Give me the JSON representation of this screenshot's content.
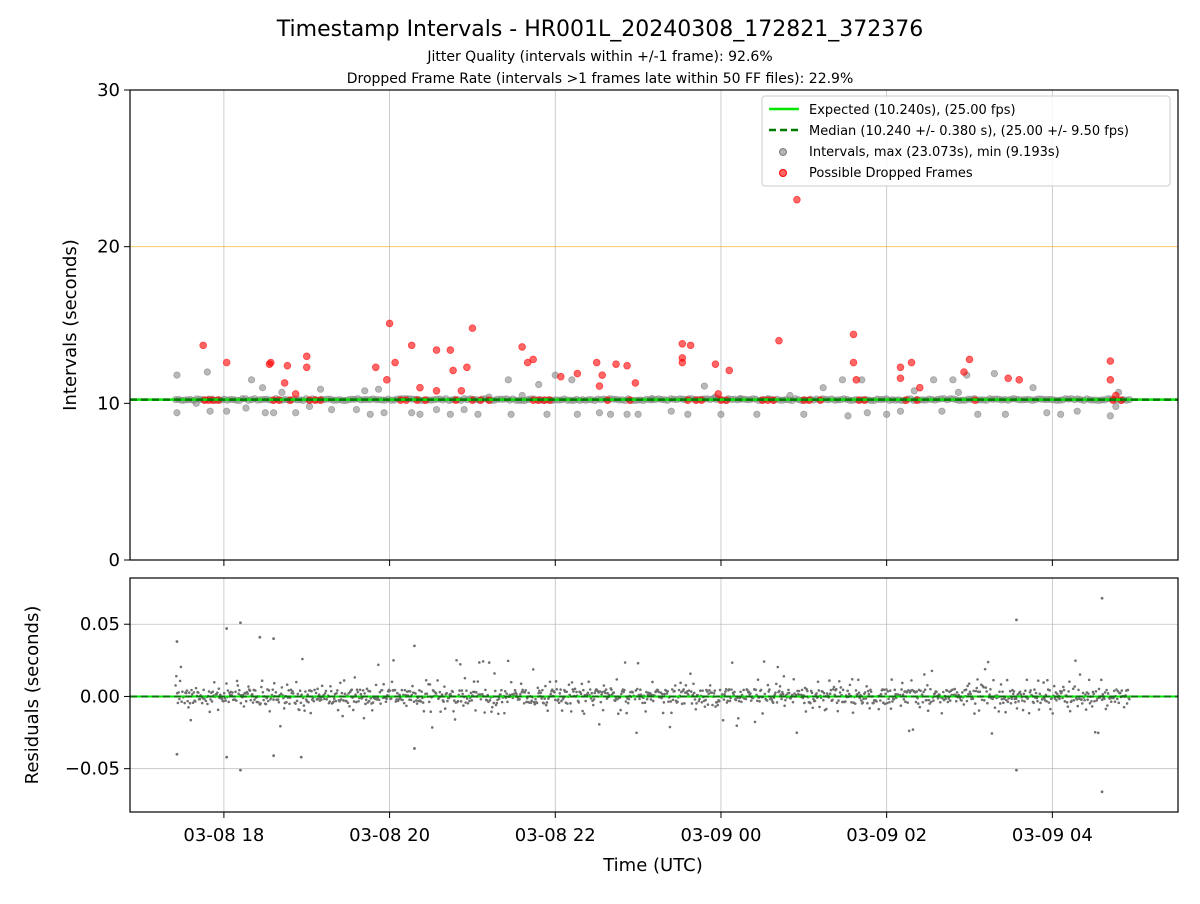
{
  "chart_data": [
    {
      "type": "scatter",
      "title": "Timestamp Intervals - HR001L_20240308_172821_372376",
      "subtitle_1": "Jitter Quality (intervals within +/-1 frame): 92.6%",
      "subtitle_2": "Dropped Frame Rate (intervals >1 frames late within 50 FF files): 22.9%",
      "ylabel": "Intervals (seconds)",
      "ylim": [
        0,
        30
      ],
      "yticks": [
        "0",
        "10",
        "20",
        "30"
      ],
      "xlim": [
        "2024-03-08 16:52",
        "2024-03-09 05:31"
      ],
      "xticks": [
        {
          "value": "2024-03-08 18:00",
          "label": "03-08 18"
        },
        {
          "value": "2024-03-08 20:00",
          "label": "03-08 20"
        },
        {
          "value": "2024-03-08 22:00",
          "label": "03-08 22"
        },
        {
          "value": "2024-03-09 00:00",
          "label": "03-09 00"
        },
        {
          "value": "2024-03-09 02:00",
          "label": "03-09 02"
        },
        {
          "value": "2024-03-09 04:00",
          "label": "03-09 04"
        }
      ],
      "grid": "vertical",
      "reference_line_y": 20,
      "legend_position": "top-right",
      "series": [
        {
          "name": "Expected (10.240s), (25.00 fps)",
          "kind": "hline",
          "y": 10.24,
          "color": "#00e600"
        },
        {
          "name": "Median (10.240 +/- 0.380 s), (25.00 +/- 9.50 fps)",
          "kind": "hline-dashed",
          "y": 10.24,
          "color": "#007a00"
        },
        {
          "name": "Intervals, max (23.073s), min (9.193s)",
          "kind": "points",
          "color": "#808080",
          "points": [
            [
              "2024-03-08 17:26",
              11.8
            ],
            [
              "2024-03-08 17:26",
              9.4
            ],
            [
              "2024-03-08 17:40",
              10.0
            ],
            [
              "2024-03-08 17:48",
              12.0
            ],
            [
              "2024-03-08 17:50",
              9.5
            ],
            [
              "2024-03-08 18:02",
              9.5
            ],
            [
              "2024-03-08 18:16",
              9.7
            ],
            [
              "2024-03-08 18:20",
              11.5
            ],
            [
              "2024-03-08 18:28",
              11.0
            ],
            [
              "2024-03-08 18:30",
              9.4
            ],
            [
              "2024-03-08 18:36",
              9.4
            ],
            [
              "2024-03-08 18:42",
              10.7
            ],
            [
              "2024-03-08 18:52",
              9.4
            ],
            [
              "2024-03-08 19:02",
              9.8
            ],
            [
              "2024-03-08 19:10",
              10.9
            ],
            [
              "2024-03-08 19:18",
              9.6
            ],
            [
              "2024-03-08 19:36",
              9.6
            ],
            [
              "2024-03-08 19:42",
              10.8
            ],
            [
              "2024-03-08 19:46",
              9.3
            ],
            [
              "2024-03-08 19:52",
              10.9
            ],
            [
              "2024-03-08 19:56",
              9.4
            ],
            [
              "2024-03-08 20:16",
              9.4
            ],
            [
              "2024-03-08 20:22",
              9.3
            ],
            [
              "2024-03-08 20:34",
              9.6
            ],
            [
              "2024-03-08 20:44",
              9.3
            ],
            [
              "2024-03-08 20:54",
              9.6
            ],
            [
              "2024-03-08 21:04",
              9.3
            ],
            [
              "2024-03-08 21:12",
              10.4
            ],
            [
              "2024-03-08 21:26",
              11.5
            ],
            [
              "2024-03-08 21:28",
              9.3
            ],
            [
              "2024-03-08 21:36",
              10.5
            ],
            [
              "2024-03-08 21:48",
              11.2
            ],
            [
              "2024-03-08 21:54",
              9.3
            ],
            [
              "2024-03-08 22:00",
              11.8
            ],
            [
              "2024-03-08 22:12",
              11.5
            ],
            [
              "2024-03-08 22:16",
              9.3
            ],
            [
              "2024-03-08 22:32",
              9.4
            ],
            [
              "2024-03-08 22:40",
              9.3
            ],
            [
              "2024-03-08 22:52",
              9.3
            ],
            [
              "2024-03-08 23:00",
              9.3
            ],
            [
              "2024-03-08 23:10",
              10.3
            ],
            [
              "2024-03-08 23:24",
              9.5
            ],
            [
              "2024-03-08 23:36",
              9.3
            ],
            [
              "2024-03-08 23:48",
              11.1
            ],
            [
              "2024-03-08 23:56",
              10.4
            ],
            [
              "2024-03-09 00:00",
              9.3
            ],
            [
              "2024-03-09 00:14",
              10.3
            ],
            [
              "2024-03-09 00:26",
              9.3
            ],
            [
              "2024-03-09 00:50",
              10.5
            ],
            [
              "2024-03-09 01:00",
              9.3
            ],
            [
              "2024-03-09 01:14",
              11.0
            ],
            [
              "2024-03-09 01:28",
              11.5
            ],
            [
              "2024-03-09 01:32",
              9.2
            ],
            [
              "2024-03-09 01:42",
              11.5
            ],
            [
              "2024-03-09 01:46",
              9.4
            ],
            [
              "2024-03-09 02:00",
              9.3
            ],
            [
              "2024-03-09 02:10",
              9.5
            ],
            [
              "2024-03-09 02:20",
              10.8
            ],
            [
              "2024-03-09 02:34",
              11.5
            ],
            [
              "2024-03-09 02:40",
              9.5
            ],
            [
              "2024-03-09 02:48",
              11.5
            ],
            [
              "2024-03-09 02:52",
              10.7
            ],
            [
              "2024-03-09 02:58",
              11.8
            ],
            [
              "2024-03-09 03:06",
              9.3
            ],
            [
              "2024-03-09 03:18",
              11.9
            ],
            [
              "2024-03-09 03:26",
              9.3
            ],
            [
              "2024-03-09 03:46",
              11.0
            ],
            [
              "2024-03-09 03:56",
              9.4
            ],
            [
              "2024-03-09 04:06",
              9.3
            ],
            [
              "2024-03-09 04:18",
              9.5
            ],
            [
              "2024-03-09 04:42",
              9.2
            ],
            [
              "2024-03-09 04:46",
              9.8
            ],
            [
              "2024-03-09 04:48",
              10.7
            ]
          ]
        },
        {
          "name": "Possible Dropped Frames",
          "kind": "points",
          "color": "#ff0000",
          "points": [
            [
              "2024-03-08 17:45",
              13.7
            ],
            [
              "2024-03-08 17:46",
              10.2
            ],
            [
              "2024-03-08 17:49",
              10.2
            ],
            [
              "2024-03-08 17:52",
              10.2
            ],
            [
              "2024-03-08 17:56",
              10.2
            ],
            [
              "2024-03-08 18:02",
              12.6
            ],
            [
              "2024-03-08 18:33",
              12.5
            ],
            [
              "2024-03-08 18:34",
              12.6
            ],
            [
              "2024-03-08 18:36",
              10.2
            ],
            [
              "2024-03-08 18:40",
              10.2
            ],
            [
              "2024-03-08 18:44",
              11.3
            ],
            [
              "2024-03-08 18:46",
              12.4
            ],
            [
              "2024-03-08 18:48",
              10.2
            ],
            [
              "2024-03-08 18:52",
              10.6
            ],
            [
              "2024-03-08 19:00",
              13.0
            ],
            [
              "2024-03-08 19:00",
              12.3
            ],
            [
              "2024-03-08 19:02",
              10.2
            ],
            [
              "2024-03-08 19:06",
              10.2
            ],
            [
              "2024-03-08 19:10",
              10.2
            ],
            [
              "2024-03-08 19:50",
              12.3
            ],
            [
              "2024-03-08 19:58",
              11.5
            ],
            [
              "2024-03-08 20:00",
              15.1
            ],
            [
              "2024-03-08 20:04",
              12.6
            ],
            [
              "2024-03-08 20:08",
              10.2
            ],
            [
              "2024-03-08 20:12",
              10.2
            ],
            [
              "2024-03-08 20:16",
              13.7
            ],
            [
              "2024-03-08 20:20",
              10.2
            ],
            [
              "2024-03-08 20:22",
              11.0
            ],
            [
              "2024-03-08 20:26",
              10.2
            ],
            [
              "2024-03-08 20:34",
              13.4
            ],
            [
              "2024-03-08 20:34",
              10.8
            ],
            [
              "2024-03-08 20:44",
              13.4
            ],
            [
              "2024-03-08 20:46",
              12.1
            ],
            [
              "2024-03-08 20:48",
              10.2
            ],
            [
              "2024-03-08 20:52",
              10.8
            ],
            [
              "2024-03-08 20:56",
              12.3
            ],
            [
              "2024-03-08 21:00",
              14.8
            ],
            [
              "2024-03-08 21:00",
              10.2
            ],
            [
              "2024-03-08 21:06",
              10.2
            ],
            [
              "2024-03-08 21:12",
              10.2
            ],
            [
              "2024-03-08 21:36",
              13.6
            ],
            [
              "2024-03-08 21:40",
              12.6
            ],
            [
              "2024-03-08 21:44",
              12.8
            ],
            [
              "2024-03-08 21:44",
              10.2
            ],
            [
              "2024-03-08 21:48",
              10.2
            ],
            [
              "2024-03-08 21:52",
              10.2
            ],
            [
              "2024-03-08 21:56",
              10.2
            ],
            [
              "2024-03-08 22:04",
              11.7
            ],
            [
              "2024-03-08 22:16",
              11.9
            ],
            [
              "2024-03-08 22:30",
              12.6
            ],
            [
              "2024-03-08 22:32",
              11.1
            ],
            [
              "2024-03-08 22:34",
              11.8
            ],
            [
              "2024-03-08 22:38",
              10.2
            ],
            [
              "2024-03-08 22:44",
              12.5
            ],
            [
              "2024-03-08 22:52",
              12.4
            ],
            [
              "2024-03-08 22:54",
              10.2
            ],
            [
              "2024-03-08 22:58",
              11.3
            ],
            [
              "2024-03-08 23:32",
              13.8
            ],
            [
              "2024-03-08 23:32",
              12.9
            ],
            [
              "2024-03-08 23:32",
              12.6
            ],
            [
              "2024-03-08 23:36",
              10.2
            ],
            [
              "2024-03-08 23:38",
              13.7
            ],
            [
              "2024-03-08 23:42",
              10.2
            ],
            [
              "2024-03-08 23:46",
              10.2
            ],
            [
              "2024-03-08 23:56",
              12.5
            ],
            [
              "2024-03-08 23:58",
              10.6
            ],
            [
              "2024-03-09 00:00",
              10.2
            ],
            [
              "2024-03-09 00:04",
              10.2
            ],
            [
              "2024-03-09 00:06",
              12.1
            ],
            [
              "2024-03-09 00:30",
              10.2
            ],
            [
              "2024-03-09 00:34",
              10.2
            ],
            [
              "2024-03-09 00:38",
              10.2
            ],
            [
              "2024-03-09 00:42",
              14.0
            ],
            [
              "2024-03-09 00:55",
              23.0
            ],
            [
              "2024-03-09 01:00",
              10.2
            ],
            [
              "2024-03-09 01:04",
              10.2
            ],
            [
              "2024-03-09 01:12",
              10.2
            ],
            [
              "2024-03-09 01:36",
              14.4
            ],
            [
              "2024-03-09 01:36",
              12.6
            ],
            [
              "2024-03-09 01:38",
              11.5
            ],
            [
              "2024-03-09 01:40",
              10.2
            ],
            [
              "2024-03-09 01:44",
              10.2
            ],
            [
              "2024-03-09 02:10",
              12.3
            ],
            [
              "2024-03-09 02:10",
              11.6
            ],
            [
              "2024-03-09 02:14",
              10.2
            ],
            [
              "2024-03-09 02:18",
              12.6
            ],
            [
              "2024-03-09 02:22",
              10.2
            ],
            [
              "2024-03-09 02:24",
              11.0
            ],
            [
              "2024-03-09 02:56",
              12.0
            ],
            [
              "2024-03-09 03:00",
              12.8
            ],
            [
              "2024-03-09 03:04",
              10.2
            ],
            [
              "2024-03-09 03:28",
              11.6
            ],
            [
              "2024-03-09 03:36",
              11.5
            ],
            [
              "2024-03-09 04:42",
              12.7
            ],
            [
              "2024-03-09 04:42",
              11.5
            ],
            [
              "2024-03-09 04:44",
              10.2
            ],
            [
              "2024-03-09 04:46",
              10.5
            ],
            [
              "2024-03-09 04:50",
              10.2
            ]
          ]
        }
      ]
    },
    {
      "type": "scatter",
      "ylabel": "Residuals (seconds)",
      "xlabel": "Time (UTC)",
      "ylim": [
        -0.08,
        0.082
      ],
      "yticks": [
        {
          "value": 0.05,
          "label": "0.05"
        },
        {
          "value": 0.0,
          "label": "0.00"
        },
        {
          "value": -0.05,
          "label": "−0.05"
        }
      ],
      "grid": "both",
      "residual_points_range": [
        "2024-03-08 17:25",
        "2024-03-09 04:56"
      ],
      "series": [
        {
          "name": "",
          "kind": "hline",
          "y": 0.0,
          "color": "#00e600"
        },
        {
          "name": "",
          "kind": "hline-dashed",
          "y": 0.0,
          "color": "#007a00"
        },
        {
          "name": "",
          "kind": "points",
          "color": "#808080",
          "outliers": [
            [
              "2024-03-08 17:26",
              0.038
            ],
            [
              "2024-03-08 17:26",
              -0.04
            ],
            [
              "2024-03-08 18:02",
              0.047
            ],
            [
              "2024-03-08 18:02",
              -0.042
            ],
            [
              "2024-03-08 18:12",
              0.051
            ],
            [
              "2024-03-08 18:12",
              -0.051
            ],
            [
              "2024-03-08 18:26",
              0.041
            ],
            [
              "2024-03-08 18:36",
              0.04
            ],
            [
              "2024-03-08 18:36",
              -0.041
            ],
            [
              "2024-03-08 18:56",
              -0.042
            ],
            [
              "2024-03-08 20:18",
              0.035
            ],
            [
              "2024-03-08 20:18",
              -0.036
            ],
            [
              "2024-03-09 03:34",
              0.053
            ],
            [
              "2024-03-09 03:34",
              -0.051
            ],
            [
              "2024-03-09 04:36",
              0.068
            ],
            [
              "2024-03-09 04:36",
              -0.066
            ]
          ]
        }
      ]
    }
  ]
}
